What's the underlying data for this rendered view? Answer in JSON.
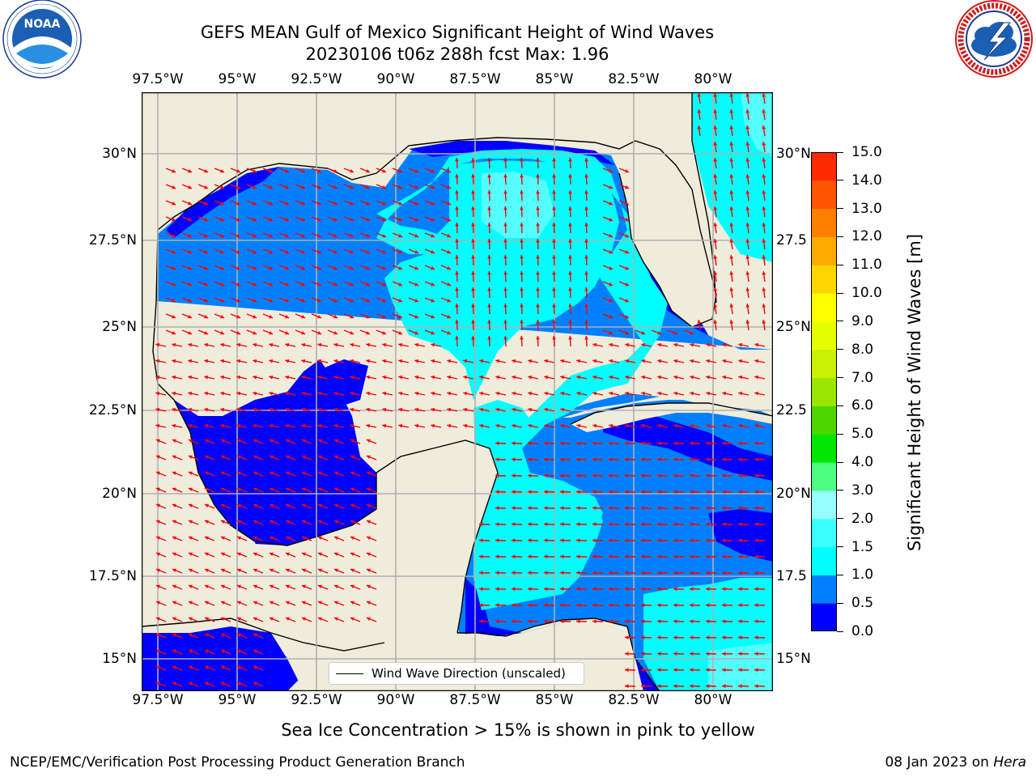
{
  "header": {
    "title_line1": "GEFS MEAN Gulf of Mexico Significant Height of Wind Waves",
    "title_line2": "20230106 t06z 288h fcst   Max: 1.96"
  },
  "logos": {
    "left": {
      "icon": "noaa-logo",
      "text": "NOAA",
      "ring_text": "NATIONAL OCEANIC AND ATMOSPHERIC ADMINISTRATION · U.S. DEPARTMENT OF COMMERCE"
    },
    "right": {
      "icon": "nws-logo",
      "ring_text": "NATIONAL WEATHER SERVICE"
    }
  },
  "map": {
    "lon_labels": [
      "97.5°W",
      "95°W",
      "92.5°W",
      "90°W",
      "87.5°W",
      "85°W",
      "82.5°W",
      "80°W"
    ],
    "lat_labels": [
      "30°N",
      "27.5°N",
      "25°N",
      "22.5°N",
      "20°N",
      "17.5°N",
      "15°N"
    ],
    "right_lat_labels": [
      "30°N",
      "27.5",
      "25°N",
      "22.5",
      "20°N",
      "17.5",
      "15°N"
    ],
    "colors": {
      "land": "#efecdc",
      "ocean": "#0080ff",
      "shelf": "#0000ff",
      "deep": "#00e5e5",
      "mid": "#00ffff",
      "high": "#54ffff",
      "arrows": "#ff0000",
      "grid": "#b0b0b0"
    }
  },
  "legend": {
    "label": "Wind Wave Direction (unscaled)"
  },
  "colorbar": {
    "label": "Significant Height of Wind Waves [m]",
    "ticks": [
      "0.0",
      "0.5",
      "1.0",
      "1.5",
      "2.0",
      "3.0",
      "4.0",
      "5.0",
      "6.0",
      "7.0",
      "8.0",
      "9.0",
      "10.0",
      "11.0",
      "12.0",
      "13.0",
      "14.0",
      "15.0"
    ],
    "colors": [
      "#0000ff",
      "#0080ff",
      "#00ffff",
      "#3dffff",
      "#96ffff",
      "#4dff80",
      "#00e600",
      "#4dd600",
      "#99e600",
      "#c8f000",
      "#e6ff00",
      "#ffff00",
      "#ffd500",
      "#ffaa00",
      "#ff8000",
      "#ff5500",
      "#ff2b00"
    ]
  },
  "footer": {
    "note": "Sea Ice Concentration > 15% is shown in pink to yellow",
    "left": "NCEP/EMC/Verification Post Processing Product Generation Branch",
    "right_date": "08 Jan 2023 on",
    "right_host": "Hera"
  }
}
